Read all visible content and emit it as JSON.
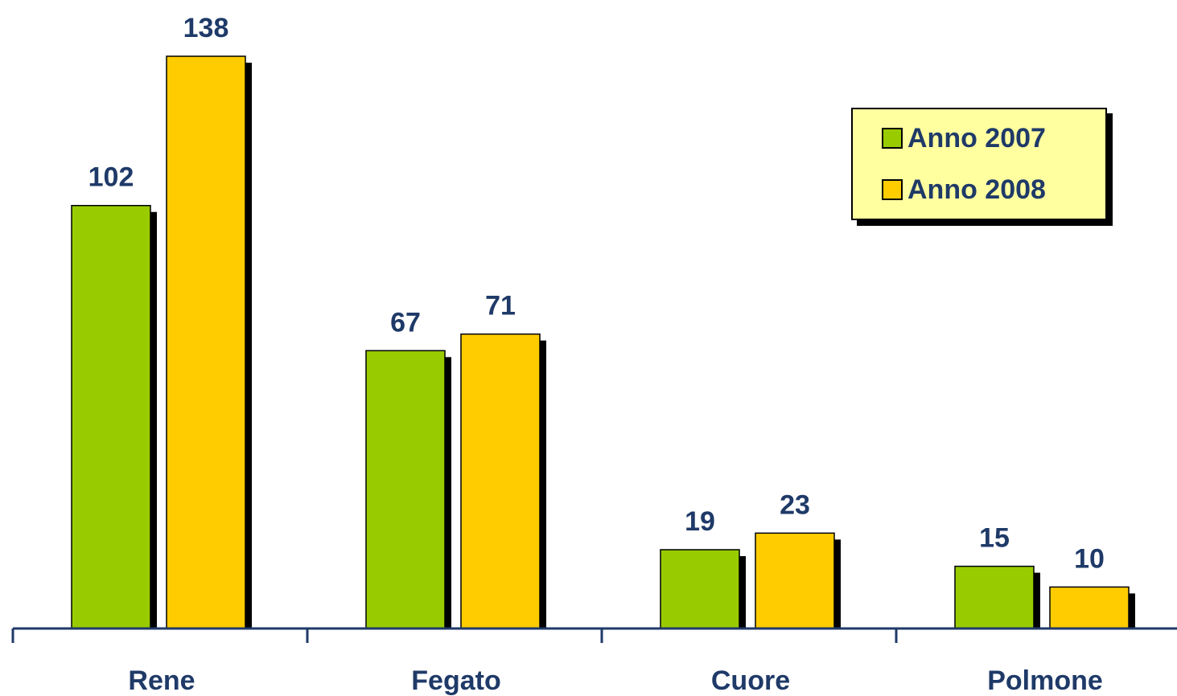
{
  "chart_data": {
    "type": "bar",
    "categories": [
      "Rene",
      "Fegato",
      "Cuore",
      "Polmone"
    ],
    "series": [
      {
        "name": "Anno 2007",
        "values": [
          102,
          67,
          19,
          15
        ],
        "color": "#99cc00"
      },
      {
        "name": "Anno 2008",
        "values": [
          138,
          71,
          23,
          10
        ],
        "color": "#ffcc00"
      }
    ],
    "title": "",
    "xlabel": "",
    "ylabel": "",
    "ylim": [
      0,
      138
    ],
    "grid": false,
    "legend_position": "top-right",
    "text_color": "#1f3a68",
    "axis_color": "#1f3a68"
  }
}
